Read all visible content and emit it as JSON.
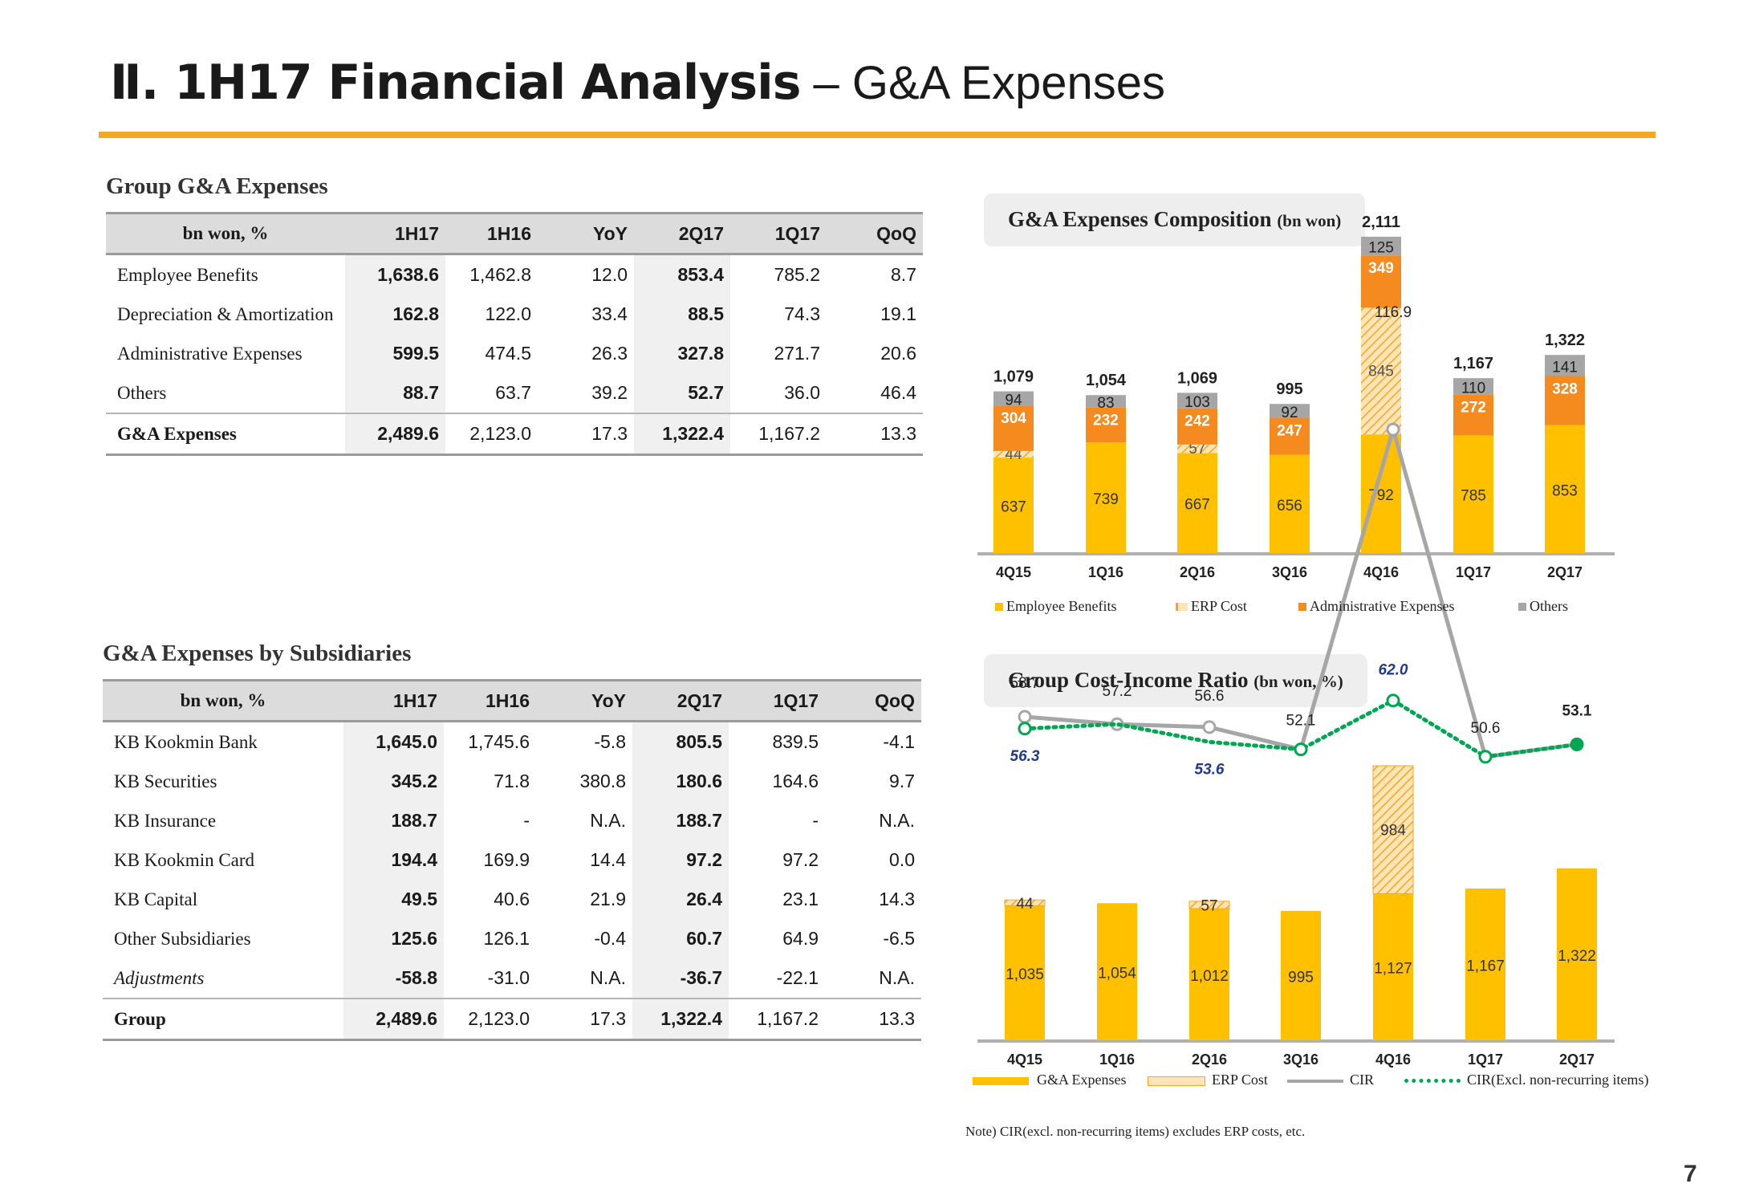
{
  "header": {
    "title_bold": "Ⅱ. 1H17 Financial Analysis",
    "title_rest": " – G&A Expenses"
  },
  "page_number": "7",
  "group_table": {
    "title": "Group G&A Expenses",
    "columns": [
      "bn won, %",
      "1H17",
      "1H16",
      "YoY",
      "2Q17",
      "1Q17",
      "QoQ"
    ],
    "rows": [
      [
        "Employee Benefits",
        "1,638.6",
        "1,462.8",
        "12.0",
        "853.4",
        "785.2",
        "8.7"
      ],
      [
        "Depreciation & Amortization",
        "162.8",
        "122.0",
        "33.4",
        "88.5",
        "74.3",
        "19.1"
      ],
      [
        "Administrative Expenses",
        "599.5",
        "474.5",
        "26.3",
        "327.8",
        "271.7",
        "20.6"
      ],
      [
        "Others",
        "88.7",
        "63.7",
        "39.2",
        "52.7",
        "36.0",
        "46.4"
      ],
      [
        "G&A Expenses",
        "2,489.6",
        "2,123.0",
        "17.3",
        "1,322.4",
        "1,167.2",
        "13.3"
      ]
    ]
  },
  "subs_table": {
    "title": "G&A Expenses by Subsidiaries",
    "columns": [
      "bn won, %",
      "1H17",
      "1H16",
      "YoY",
      "2Q17",
      "1Q17",
      "QoQ"
    ],
    "rows": [
      [
        "KB Kookmin Bank",
        "1,645.0",
        "1,745.6",
        "-5.8",
        "805.5",
        "839.5",
        "-4.1"
      ],
      [
        "KB Securities",
        "345.2",
        "71.8",
        "380.8",
        "180.6",
        "164.6",
        "9.7"
      ],
      [
        "KB Insurance",
        "188.7",
        "-",
        "N.A.",
        "188.7",
        "-",
        "N.A."
      ],
      [
        "KB Kookmin Card",
        "194.4",
        "169.9",
        "14.4",
        "97.2",
        "97.2",
        "0.0"
      ],
      [
        "KB Capital",
        "49.5",
        "40.6",
        "21.9",
        "26.4",
        "23.1",
        "14.3"
      ],
      [
        "Other Subsidiaries",
        "125.6",
        "126.1",
        "-0.4",
        "60.7",
        "64.9",
        "-6.5"
      ],
      [
        "Adjustments",
        "-58.8",
        "-31.0",
        "N.A.",
        "-36.7",
        "-22.1",
        "N.A."
      ],
      [
        "Group",
        "2,489.6",
        "2,123.0",
        "17.3",
        "1,322.4",
        "1,167.2",
        "13.3"
      ]
    ]
  },
  "composition_box": {
    "title": "G&A Expenses Composition",
    "unit": "(bn won)"
  },
  "cir_box": {
    "title": "Group Cost-Income Ratio",
    "unit": "(bn won, %)"
  },
  "note": "Note) CIR(excl. non-recurring items) excludes ERP costs, etc.",
  "colors": {
    "employee": "#ffc000",
    "erp": "#f5a623",
    "admin": "#f58a1f",
    "others": "#a6a6a6",
    "cir": "#a6a6a6",
    "cir_excl": "#00a651",
    "ga": "#ffc000",
    "accent": "#f5a623"
  },
  "chart_data": [
    {
      "type": "bar",
      "stacked": true,
      "title": "G&A Expenses Composition",
      "categories": [
        "4Q15",
        "1Q16",
        "2Q16",
        "3Q16",
        "4Q16",
        "1Q17",
        "2Q17"
      ],
      "series": [
        {
          "name": "Employee Benefits",
          "values": [
            637,
            739,
            667,
            656,
            792,
            785,
            853
          ]
        },
        {
          "name": "ERP Cost",
          "values": [
            44,
            0,
            57,
            0,
            845,
            0,
            0
          ]
        },
        {
          "name": "Administrative Expenses",
          "values": [
            304,
            232,
            242,
            247,
            349,
            272,
            328
          ]
        },
        {
          "name": "Others",
          "values": [
            94,
            83,
            103,
            92,
            125,
            110,
            141
          ]
        }
      ],
      "labels": {
        "Employee Benefits": [
          "637",
          "739",
          "667",
          "656",
          "792",
          "785",
          "853"
        ],
        "ERP Cost": [
          "44",
          "",
          "57",
          "",
          "845",
          "",
          ""
        ],
        "Administrative Expenses": [
          "304",
          "232",
          "242",
          "247",
          "349",
          "272",
          "328"
        ],
        "Others": [
          "94",
          "83",
          "103",
          "92",
          "125",
          "110",
          "141"
        ]
      },
      "totals": [
        "1,079",
        "1,054",
        "1,069",
        "995",
        "2,111",
        "1,167",
        "1,322"
      ],
      "total_values": [
        1079,
        1054,
        1069,
        995,
        2111,
        1167,
        1322
      ],
      "legend": [
        "Employee Benefits",
        "ERP Cost",
        "Administrative Expenses",
        "Others"
      ],
      "legend_position": "bottom"
    },
    {
      "type": "bar",
      "title": "Group Cost-Income Ratio",
      "categories": [
        "4Q15",
        "1Q16",
        "2Q16",
        "3Q16",
        "4Q16",
        "1Q17",
        "2Q17"
      ],
      "series": [
        {
          "name": "G&A Expenses",
          "values": [
            1035,
            1054,
            1012,
            995,
            1127,
            1167,
            1322
          ]
        },
        {
          "name": "ERP Cost",
          "values": [
            44,
            0,
            57,
            0,
            984,
            0,
            0
          ]
        },
        {
          "name": "CIR",
          "type": "line",
          "values": [
            58.7,
            57.2,
            56.6,
            52.1,
            116.9,
            50.6,
            53.1
          ]
        },
        {
          "name": "CIR(Excl. non-recurring items)",
          "type": "line",
          "values": [
            56.3,
            57.2,
            53.6,
            52.1,
            62.0,
            50.6,
            53.1
          ]
        }
      ],
      "bar_labels": [
        "1,035",
        "1,054",
        "1,012",
        "995",
        "1,127",
        "1,167",
        "1,322"
      ],
      "erp_labels": [
        "44",
        "",
        "57",
        "",
        "984",
        "",
        ""
      ],
      "cir_labels": [
        "58.7",
        "57.2",
        "56.6",
        "52.1",
        "116.9",
        "50.6",
        "53.1"
      ],
      "cir_excl_labels": [
        "56.3",
        "",
        "53.6",
        "",
        "62.0",
        "",
        ""
      ],
      "legend": [
        "G&A Expenses",
        "ERP Cost",
        "CIR",
        "CIR(Excl. non-recurring items)"
      ],
      "legend_position": "bottom"
    }
  ]
}
